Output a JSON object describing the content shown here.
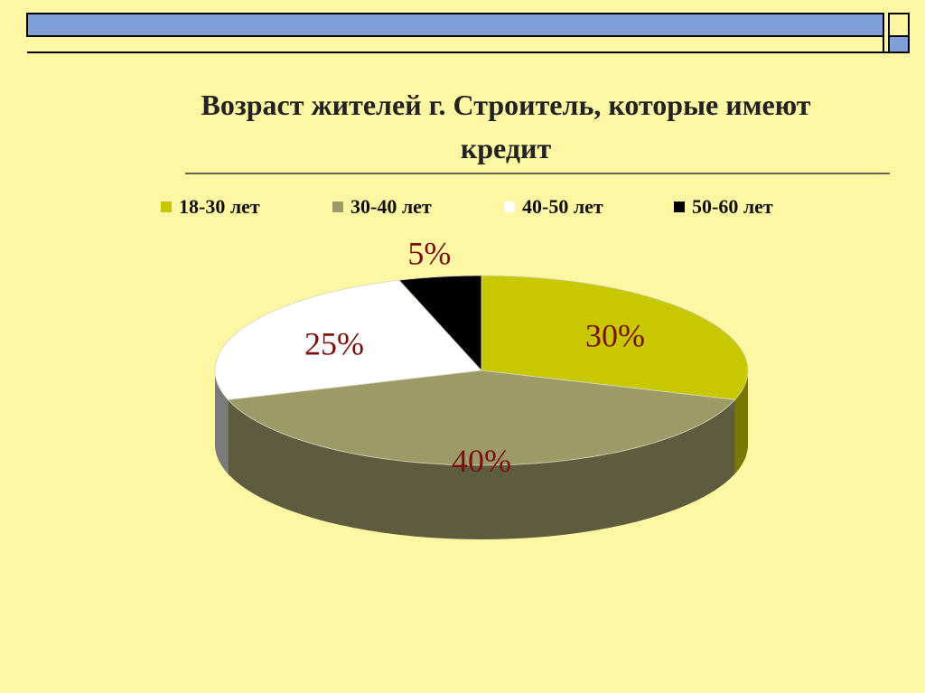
{
  "chart_data": {
    "type": "pie3d",
    "title": "Возраст жителей г. Строитель, которые имеют кредит",
    "categories": [
      "18-30 лет",
      "30-40 лет",
      "40-50 лет",
      "50-60 лет"
    ],
    "values": [
      30,
      40,
      25,
      5
    ],
    "value_labels": [
      "30%",
      "40%",
      "25%",
      "5%"
    ],
    "colors": [
      "#c8c800",
      "#9c9a67",
      "#ffffff",
      "#000000"
    ],
    "legend": "top"
  }
}
